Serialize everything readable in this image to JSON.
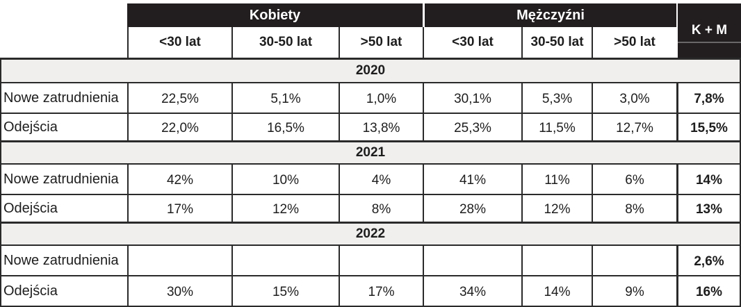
{
  "chart_data": {
    "type": "table",
    "description": "Employment table: new hires and departures by gender and age group, years 2020-2022",
    "column_groups": [
      {
        "label": "Kobiety",
        "span": 3
      },
      {
        "label": "Mężczyźni",
        "span": 3
      }
    ],
    "age_columns": [
      "<30 lat",
      "30-50 lat",
      ">50 lat",
      "<30 lat",
      "30-50 lat",
      ">50 lat"
    ],
    "total_column": "K + M",
    "sections": [
      {
        "year": "2020",
        "rows": [
          {
            "label": "Nowe zatrudnienia",
            "values": [
              "22,5%",
              "5,1%",
              "1,0%",
              "30,1%",
              "5,3%",
              "3,0%"
            ],
            "total": "7,8%"
          },
          {
            "label": "Odejścia",
            "values": [
              "22,0%",
              "16,5%",
              "13,8%",
              "25,3%",
              "11,5%",
              "12,7%"
            ],
            "total": "15,5%"
          }
        ]
      },
      {
        "year": "2021",
        "rows": [
          {
            "label": "Nowe zatrudnienia",
            "values": [
              "42%",
              "10%",
              "4%",
              "41%",
              "11%",
              "6%"
            ],
            "total": "14%"
          },
          {
            "label": "Odejścia",
            "values": [
              "17%",
              "12%",
              "8%",
              "28%",
              "12%",
              "8%"
            ],
            "total": "13%"
          }
        ]
      },
      {
        "year": "2022",
        "rows": [
          {
            "label": "Nowe zatrudnienia",
            "values": [
              "",
              "",
              "",
              "",
              "",
              ""
            ],
            "total": "2,6%"
          },
          {
            "label": "Odejścia",
            "values": [
              "30%",
              "15%",
              "17%",
              "34%",
              "14%",
              "9%"
            ],
            "total": "16%"
          }
        ]
      }
    ]
  },
  "colors": {
    "header_bg": "#221e1f",
    "header_text": "#ffffff",
    "band_bg": "#f0efee",
    "border": "#2b2a2a",
    "text": "#1d1d1d"
  }
}
